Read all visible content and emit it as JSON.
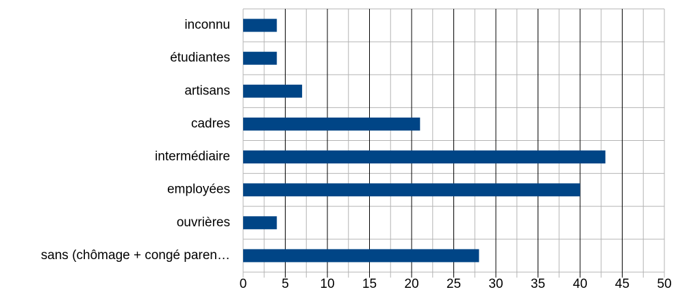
{
  "chart_data": {
    "type": "bar",
    "orientation": "horizontal",
    "categories": [
      "inconnu",
      "étudiantes",
      "artisans",
      "cadres",
      "intermédiaire",
      "employées",
      "ouvrières",
      "sans (chômage + congé paren…"
    ],
    "values": [
      4,
      4,
      7,
      21,
      43,
      40,
      4,
      28
    ],
    "color": "#004586",
    "xlim": [
      0,
      50
    ],
    "xticks": [
      0,
      5,
      10,
      15,
      20,
      25,
      30,
      35,
      40,
      45,
      50
    ],
    "grid": true
  }
}
